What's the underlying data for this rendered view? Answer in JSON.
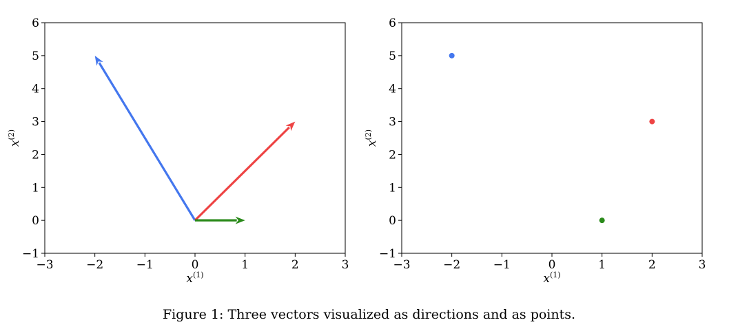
{
  "caption": "Figure 1: Three vectors visualized as directions and as points.",
  "colors": {
    "blue": "#4477ee",
    "red": "#ee4444",
    "green": "#2a8a1a",
    "frame": "#000000"
  },
  "chart_data": [
    {
      "type": "line",
      "title": "",
      "xlabel": "x",
      "xlabel_superscript": "(1)",
      "ylabel": "x",
      "ylabel_superscript": "(2)",
      "xlim": [
        -3,
        3
      ],
      "ylim": [
        -1,
        6
      ],
      "xticks": [
        -3,
        -2,
        -1,
        0,
        1,
        2,
        3
      ],
      "yticks": [
        -1,
        0,
        1,
        2,
        3,
        4,
        5,
        6
      ],
      "xtick_labels": [
        "−3",
        "−2",
        "−1",
        "0",
        "1",
        "2",
        "3"
      ],
      "ytick_labels": [
        "−1",
        "0",
        "1",
        "2",
        "3",
        "4",
        "5",
        "6"
      ],
      "grid": false,
      "series": [
        {
          "color": "#4477ee",
          "from": [
            0,
            0
          ],
          "to": [
            -2,
            5
          ]
        },
        {
          "color": "#ee4444",
          "from": [
            0,
            0
          ],
          "to": [
            2,
            3
          ]
        },
        {
          "color": "#2a8a1a",
          "from": [
            0,
            0
          ],
          "to": [
            1,
            0
          ]
        }
      ]
    },
    {
      "type": "scatter",
      "title": "",
      "xlabel": "x",
      "xlabel_superscript": "(1)",
      "ylabel": "x",
      "ylabel_superscript": "(2)",
      "xlim": [
        -3,
        3
      ],
      "ylim": [
        -1,
        6
      ],
      "xticks": [
        -3,
        -2,
        -1,
        0,
        1,
        2,
        3
      ],
      "yticks": [
        -1,
        0,
        1,
        2,
        3,
        4,
        5,
        6
      ],
      "xtick_labels": [
        "−3",
        "−2",
        "−1",
        "0",
        "1",
        "2",
        "3"
      ],
      "ytick_labels": [
        "−1",
        "0",
        "1",
        "2",
        "3",
        "4",
        "5",
        "6"
      ],
      "grid": false,
      "series": [
        {
          "color": "#4477ee",
          "x": [
            -2
          ],
          "y": [
            5
          ]
        },
        {
          "color": "#ee4444",
          "x": [
            2
          ],
          "y": [
            3
          ]
        },
        {
          "color": "#2a8a1a",
          "x": [
            1
          ],
          "y": [
            0
          ]
        }
      ]
    }
  ]
}
